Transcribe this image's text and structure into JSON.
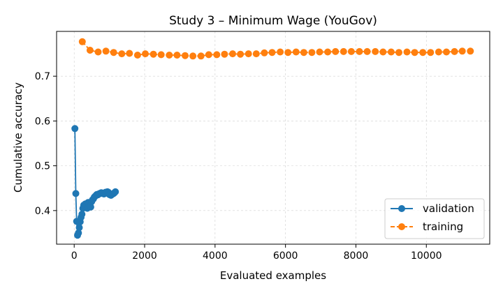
{
  "chart_data": {
    "type": "line",
    "title": "Study 3 – Minimum Wage (YouGov)",
    "xlabel": "Evaluated examples",
    "ylabel": "Cumulative accuracy",
    "xlim": [
      -500,
      11800
    ],
    "ylim": [
      0.325,
      0.8
    ],
    "xticks": [
      0,
      2000,
      4000,
      6000,
      8000,
      10000
    ],
    "xtick_labels": [
      "0",
      "2000",
      "4000",
      "6000",
      "8000",
      "10000"
    ],
    "yticks": [
      0.4,
      0.5,
      0.6,
      0.7
    ],
    "ytick_labels": [
      "0.4",
      "0.5",
      "0.6",
      "0.7"
    ],
    "grid": true,
    "legend_position": "bottom-right",
    "series": [
      {
        "name": "validation",
        "color": "#1f77b4",
        "line_style": "solid",
        "x": [
          20,
          45,
          70,
          95,
          120,
          145,
          170,
          195,
          220,
          245,
          270,
          295,
          320,
          345,
          370,
          395,
          420,
          445,
          470,
          495,
          520,
          545,
          570,
          595,
          620,
          645,
          670,
          695,
          720,
          745,
          770,
          795,
          820,
          845,
          870,
          895,
          920,
          945,
          970,
          995,
          1020,
          1045,
          1070,
          1095,
          1120,
          1145,
          1170
        ],
        "y": [
          0.583,
          0.438,
          0.376,
          0.345,
          0.35,
          0.362,
          0.375,
          0.385,
          0.392,
          0.405,
          0.412,
          0.408,
          0.415,
          0.41,
          0.405,
          0.418,
          0.415,
          0.41,
          0.408,
          0.42,
          0.424,
          0.426,
          0.43,
          0.432,
          0.434,
          0.436,
          0.435,
          0.437,
          0.438,
          0.438,
          0.44,
          0.439,
          0.438,
          0.437,
          0.44,
          0.441,
          0.44,
          0.442,
          0.441,
          0.436,
          0.435,
          0.434,
          0.436,
          0.437,
          0.438,
          0.44,
          0.442
        ]
      },
      {
        "name": "training",
        "color": "#ff7f0e",
        "line_style": "dashed",
        "x": [
          230,
          450,
          680,
          900,
          1120,
          1350,
          1570,
          1800,
          2020,
          2250,
          2470,
          2700,
          2920,
          3150,
          3370,
          3600,
          3820,
          4050,
          4270,
          4500,
          4720,
          4950,
          5170,
          5400,
          5620,
          5850,
          6070,
          6300,
          6520,
          6750,
          6970,
          7200,
          7420,
          7650,
          7870,
          8100,
          8320,
          8550,
          8770,
          9000,
          9220,
          9450,
          9670,
          9900,
          10120,
          10350,
          10570,
          10800,
          11020,
          11250
        ],
        "y": [
          0.777,
          0.758,
          0.754,
          0.756,
          0.753,
          0.75,
          0.751,
          0.747,
          0.75,
          0.749,
          0.748,
          0.747,
          0.747,
          0.746,
          0.745,
          0.745,
          0.748,
          0.748,
          0.749,
          0.75,
          0.749,
          0.75,
          0.75,
          0.752,
          0.753,
          0.754,
          0.753,
          0.754,
          0.753,
          0.753,
          0.754,
          0.754,
          0.755,
          0.755,
          0.755,
          0.755,
          0.755,
          0.755,
          0.754,
          0.754,
          0.753,
          0.754,
          0.753,
          0.753,
          0.753,
          0.754,
          0.754,
          0.755,
          0.756,
          0.756
        ]
      }
    ]
  }
}
